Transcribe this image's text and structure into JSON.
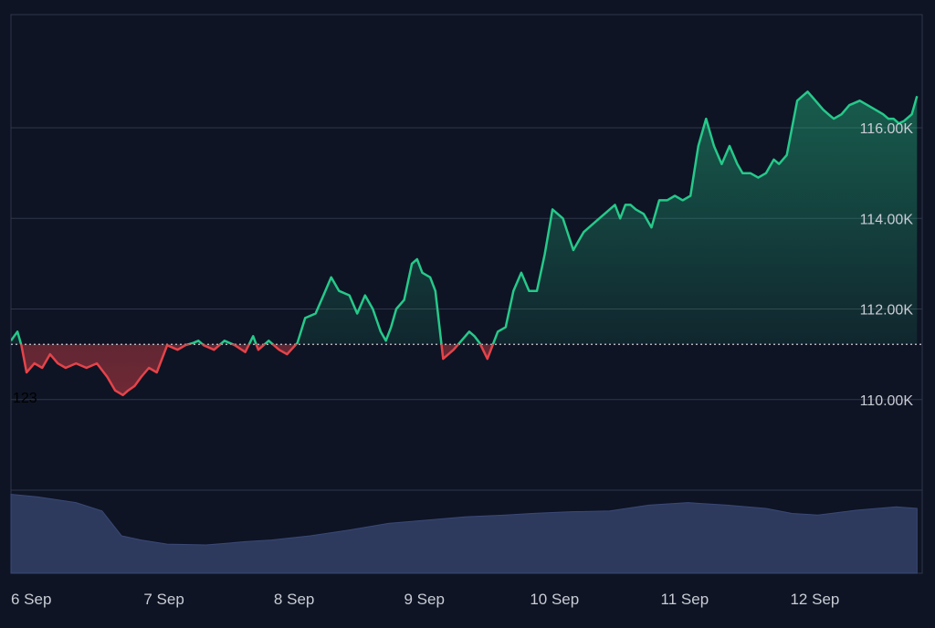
{
  "colors": {
    "background": "#0e1424",
    "grid": "#2f3648",
    "up": "#26c98a",
    "down": "#e5434a",
    "baseline": "#c9ccd4",
    "volume": "#2d3a5e",
    "axis_text": "#c9ccd4",
    "corner_label": "#000000"
  },
  "chart_data": {
    "type": "area",
    "title": "",
    "baseline_value": 111220,
    "ylim": [
      108000,
      118500
    ],
    "y_ticks": [
      110000,
      112000,
      114000,
      116000
    ],
    "y_tick_labels": [
      "110.00K",
      "112.00K",
      "114.00K",
      "116.00K"
    ],
    "x_range": [
      0,
      7.0
    ],
    "x_ticks": [
      0,
      1,
      2,
      3,
      4,
      5,
      6
    ],
    "x_tick_labels": [
      "6 Sep",
      "7 Sep",
      "8 Sep",
      "9 Sep",
      "10 Sep",
      "11 Sep",
      "12 Sep"
    ],
    "corner_label": "123",
    "price": {
      "name": "",
      "x": [
        0.0,
        0.05,
        0.08,
        0.12,
        0.18,
        0.24,
        0.3,
        0.36,
        0.42,
        0.5,
        0.58,
        0.66,
        0.74,
        0.8,
        0.86,
        0.9,
        0.95,
        1.0,
        1.06,
        1.12,
        1.2,
        1.28,
        1.34,
        1.4,
        1.44,
        1.48,
        1.56,
        1.64,
        1.72,
        1.8,
        1.86,
        1.9,
        1.98,
        2.06,
        2.12,
        2.2,
        2.26,
        2.34,
        2.4,
        2.46,
        2.52,
        2.6,
        2.66,
        2.72,
        2.78,
        2.84,
        2.88,
        2.92,
        2.96,
        3.02,
        3.08,
        3.12,
        3.16,
        3.22,
        3.26,
        3.32,
        3.4,
        3.46,
        3.52,
        3.56,
        3.6,
        3.66,
        3.74,
        3.8,
        3.86,
        3.92,
        3.98,
        4.04,
        4.1,
        4.16,
        4.24,
        4.32,
        4.4,
        4.48,
        4.56,
        4.64,
        4.68,
        4.72,
        4.76,
        4.8,
        4.86,
        4.92,
        4.98,
        5.04,
        5.1,
        5.16,
        5.22,
        5.28,
        5.34,
        5.4,
        5.46,
        5.52,
        5.58,
        5.62,
        5.68,
        5.74,
        5.8,
        5.86,
        5.9,
        5.96,
        6.0,
        6.04,
        6.08,
        6.12,
        6.18,
        6.24,
        6.28,
        6.32,
        6.38,
        6.44,
        6.52,
        6.58,
        6.64,
        6.7,
        6.74,
        6.78,
        6.82,
        6.86,
        6.92,
        6.96
      ],
      "values": [
        111300,
        111500,
        111200,
        110600,
        110800,
        110700,
        111000,
        110800,
        110700,
        110800,
        110700,
        110800,
        110500,
        110200,
        110100,
        110200,
        110300,
        110500,
        110700,
        110600,
        111200,
        111100,
        111200,
        111250,
        111300,
        111200,
        111100,
        111300,
        111200,
        111050,
        111400,
        111100,
        111300,
        111100,
        111000,
        111250,
        111800,
        111900,
        112300,
        112700,
        112400,
        112300,
        111900,
        112300,
        112000,
        111500,
        111300,
        111600,
        112000,
        112200,
        113000,
        113100,
        112800,
        112700,
        112400,
        110900,
        111100,
        111300,
        111500,
        111400,
        111250,
        110900,
        111500,
        111600,
        112400,
        112800,
        112400,
        112400,
        113200,
        114200,
        114000,
        113300,
        113700,
        113900,
        114100,
        114300,
        114000,
        114300,
        114300,
        114200,
        114100,
        113800,
        114400,
        114400,
        114500,
        114400,
        114500,
        115600,
        116200,
        115600,
        115200,
        115600,
        115200,
        115000,
        115000,
        114900,
        115000,
        115300,
        115200,
        115400,
        116000,
        116600,
        116700,
        116800,
        116600,
        116400,
        116300,
        116200,
        116300,
        116500,
        116600,
        116500,
        116400,
        116300,
        116200,
        116200,
        116100,
        116150,
        116300,
        116700
      ]
    },
    "volume": {
      "x": [
        0.0,
        0.2,
        0.5,
        0.7,
        0.85,
        1.0,
        1.2,
        1.5,
        1.8,
        2.0,
        2.3,
        2.6,
        2.9,
        3.2,
        3.5,
        3.8,
        4.0,
        4.3,
        4.6,
        4.9,
        5.2,
        5.5,
        5.8,
        6.0,
        6.2,
        6.5,
        6.8,
        6.96
      ],
      "values": [
        0.95,
        0.92,
        0.85,
        0.75,
        0.45,
        0.4,
        0.35,
        0.34,
        0.38,
        0.4,
        0.45,
        0.52,
        0.6,
        0.64,
        0.68,
        0.7,
        0.72,
        0.74,
        0.75,
        0.82,
        0.85,
        0.82,
        0.78,
        0.72,
        0.7,
        0.76,
        0.8,
        0.78
      ]
    }
  }
}
